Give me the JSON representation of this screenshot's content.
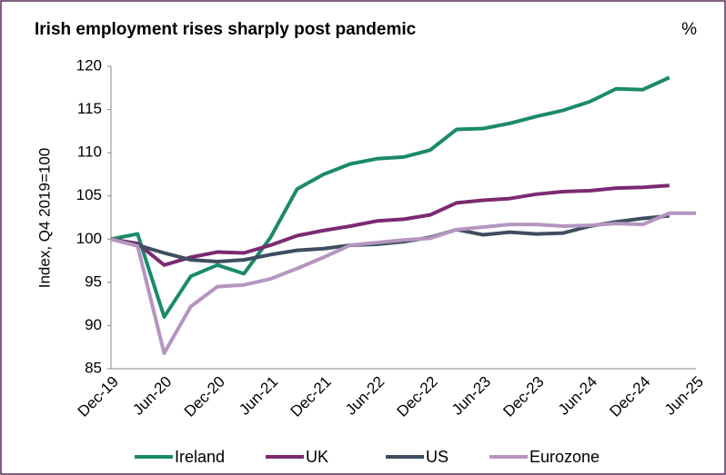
{
  "chart_data": {
    "type": "line",
    "title": "Irish employment rises sharply post pandemic",
    "unit_label": "%",
    "y_label": "Index, Q4 2019=100",
    "categories": [
      "Dec-19",
      null,
      "Jun-20",
      null,
      "Dec-20",
      null,
      "Jun-21",
      null,
      "Dec-21",
      null,
      "Jun-22",
      null,
      "Dec-22",
      null,
      "Jun-23",
      null,
      "Dec-23",
      null,
      "Jun-24",
      null,
      "Dec-24",
      null,
      "Jun-25"
    ],
    "series": [
      {
        "name": "Ireland",
        "color": "#1a8a6a",
        "values": [
          100,
          100.6,
          91,
          95.7,
          97,
          96,
          100.2,
          105.8,
          107.5,
          108.7,
          109.3,
          109.5,
          110.3,
          112.7,
          112.8,
          113.4,
          114.2,
          114.9,
          115.9,
          117.4,
          117.3,
          118.7,
          null
        ]
      },
      {
        "name": "UK",
        "color": "#7b2a72",
        "values": [
          100,
          99.5,
          97,
          97.9,
          98.5,
          98.4,
          99.3,
          100.4,
          101,
          101.5,
          102.1,
          102.3,
          102.8,
          104.2,
          104.5,
          104.7,
          105.2,
          105.5,
          105.6,
          105.9,
          106,
          106.2,
          null
        ]
      },
      {
        "name": "US",
        "color": "#3e4e60",
        "values": [
          100,
          99.3,
          98.4,
          97.6,
          97.4,
          97.6,
          98.2,
          98.7,
          98.9,
          99.3,
          99.4,
          99.7,
          100.2,
          101.1,
          100.5,
          100.8,
          100.6,
          100.7,
          101.5,
          102,
          102.4,
          102.7,
          null
        ]
      },
      {
        "name": "Eurozone",
        "color": "#b595c0",
        "values": [
          100,
          99.2,
          86.8,
          92.2,
          94.5,
          94.7,
          95.4,
          96.6,
          97.9,
          99.3,
          99.6,
          99.9,
          100.1,
          101.1,
          101.4,
          101.7,
          101.7,
          101.5,
          101.6,
          101.8,
          101.7,
          103,
          103
        ]
      }
    ],
    "ylim": [
      85,
      120
    ],
    "yticks": [
      85,
      90,
      95,
      100,
      105,
      110,
      115,
      120
    ],
    "grid": false
  }
}
